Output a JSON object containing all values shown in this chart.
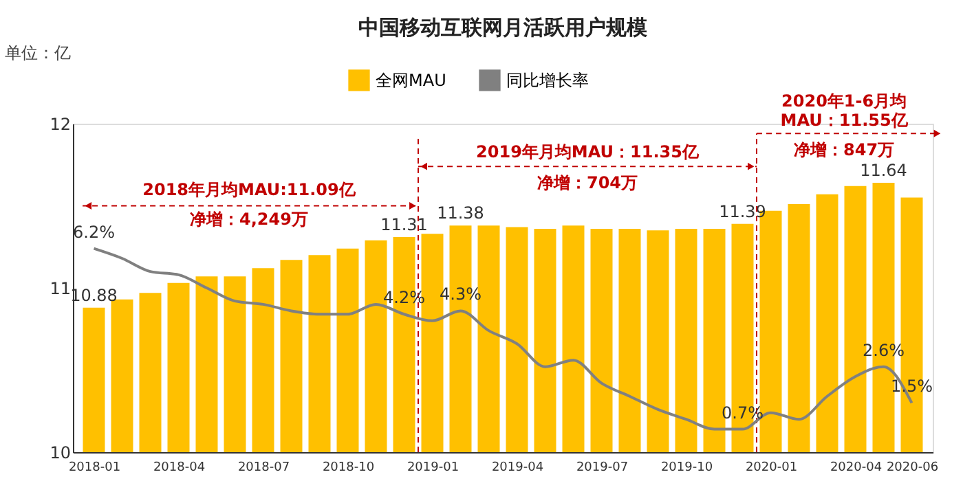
{
  "chart_data": {
    "type": "bar",
    "title": "中国移动互联网月活跃用户规模",
    "ylabel": "单位：亿",
    "categories": [
      "2018-01",
      null,
      null,
      "2018-04",
      null,
      null,
      "2018-07",
      null,
      null,
      "2018-10",
      null,
      null,
      "2019-01",
      null,
      null,
      "2019-04",
      null,
      null,
      "2019-07",
      null,
      null,
      "2019-10",
      null,
      null,
      "2020-01",
      null,
      null,
      "2020-04",
      null,
      "2020-06"
    ],
    "ylim": [
      10,
      12
    ],
    "yticks": [
      10,
      11,
      12
    ],
    "y2lim": [
      0,
      10
    ],
    "grid": false,
    "legend": "top",
    "series": [
      {
        "name": "全网MAU",
        "color": "#ffc000",
        "values": [
          10.88,
          10.93,
          10.97,
          11.03,
          11.07,
          11.07,
          11.12,
          11.17,
          11.2,
          11.24,
          11.29,
          11.31,
          11.33,
          11.38,
          11.38,
          11.37,
          11.36,
          11.38,
          11.36,
          11.36,
          11.35,
          11.36,
          11.36,
          11.39,
          11.47,
          11.51,
          11.57,
          11.62,
          11.64,
          11.55
        ],
        "value_labels": [
          "10.88",
          null,
          null,
          null,
          null,
          null,
          null,
          null,
          null,
          null,
          null,
          "11.31",
          null,
          "11.38",
          null,
          null,
          null,
          null,
          null,
          null,
          null,
          null,
          null,
          "11.39",
          null,
          null,
          null,
          null,
          "11.64",
          null
        ]
      },
      {
        "name": "同比增长率",
        "type": "line",
        "axis": "y2",
        "color": "#808080",
        "values": [
          6.2,
          5.9,
          5.5,
          5.4,
          5.0,
          4.6,
          4.5,
          4.3,
          4.2,
          4.2,
          4.5,
          4.2,
          4.0,
          4.3,
          3.7,
          3.3,
          2.6,
          2.8,
          2.1,
          1.7,
          1.3,
          1.0,
          0.7,
          0.7,
          1.2,
          1.0,
          1.7,
          2.3,
          2.6,
          1.5
        ],
        "value_labels": [
          "6.2%",
          null,
          null,
          null,
          null,
          null,
          null,
          null,
          null,
          null,
          null,
          "4.2%",
          null,
          "4.3%",
          null,
          null,
          null,
          null,
          null,
          null,
          null,
          null,
          null,
          "0.7%",
          null,
          null,
          null,
          null,
          "2.6%",
          "1.5%"
        ]
      }
    ],
    "annotations": [
      "2018年月均MAU:11.09亿",
      "净增：4,249万",
      "2019年月均MAU：11.35亿",
      "净增：704万",
      "2020年1-6月均\nMAU：11.55亿",
      "净增：847万"
    ]
  }
}
